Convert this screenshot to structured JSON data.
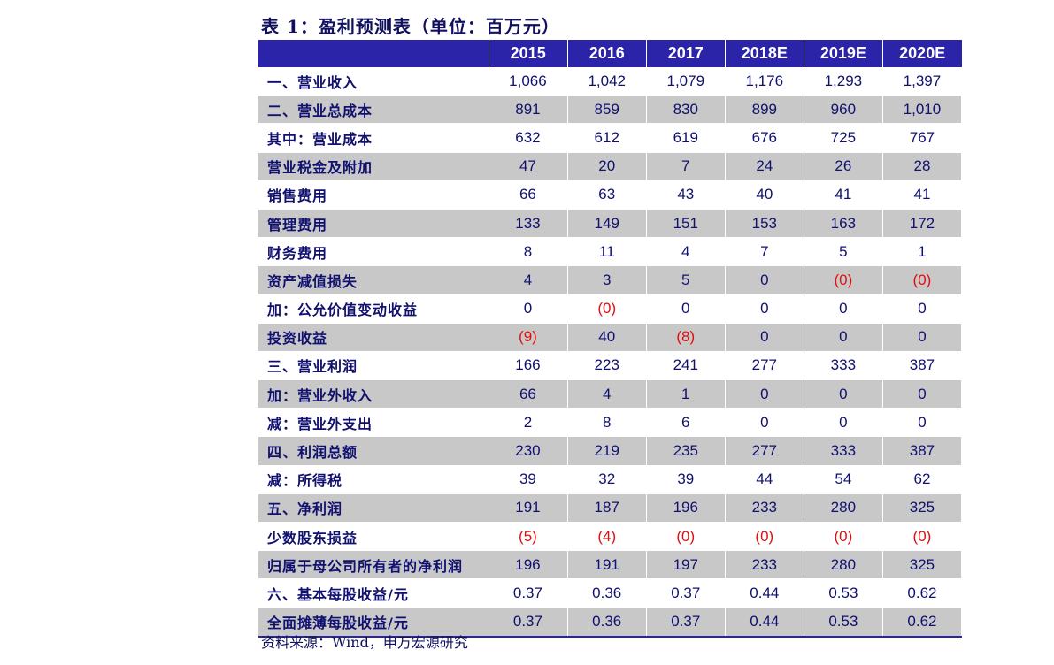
{
  "title": "表 1：盈利预测表（单位：百万元）",
  "columns": [
    "",
    "2015",
    "2016",
    "2017",
    "2018E",
    "2019E",
    "2020E"
  ],
  "rows": [
    {
      "label": "一、营业收入",
      "values": [
        "1,066",
        "1,042",
        "1,079",
        "1,176",
        "1,293",
        "1,397"
      ]
    },
    {
      "label": "二、营业总成本",
      "values": [
        "891",
        "859",
        "830",
        "899",
        "960",
        "1,010"
      ]
    },
    {
      "label": "其中：营业成本",
      "values": [
        "632",
        "612",
        "619",
        "676",
        "725",
        "767"
      ]
    },
    {
      "label": "营业税金及附加",
      "values": [
        "47",
        "20",
        "7",
        "24",
        "26",
        "28"
      ]
    },
    {
      "label": "销售费用",
      "values": [
        "66",
        "63",
        "43",
        "40",
        "41",
        "41"
      ]
    },
    {
      "label": "管理费用",
      "values": [
        "133",
        "149",
        "151",
        "153",
        "163",
        "172"
      ]
    },
    {
      "label": "财务费用",
      "values": [
        "8",
        "11",
        "4",
        "7",
        "5",
        "1"
      ]
    },
    {
      "label": "资产减值损失",
      "values": [
        "4",
        "3",
        "5",
        "0",
        "(0)",
        "(0)"
      ]
    },
    {
      "label": "加：公允价值变动收益",
      "values": [
        "0",
        "(0)",
        "0",
        "0",
        "0",
        "0"
      ]
    },
    {
      "label": "投资收益",
      "values": [
        "(9)",
        "40",
        "(8)",
        "0",
        "0",
        "0"
      ]
    },
    {
      "label": "三、营业利润",
      "values": [
        "166",
        "223",
        "241",
        "277",
        "333",
        "387"
      ]
    },
    {
      "label": "加：营业外收入",
      "values": [
        "66",
        "4",
        "1",
        "0",
        "0",
        "0"
      ]
    },
    {
      "label": "减：营业外支出",
      "values": [
        "2",
        "8",
        "6",
        "0",
        "0",
        "0"
      ]
    },
    {
      "label": "四、利润总额",
      "values": [
        "230",
        "219",
        "235",
        "277",
        "333",
        "387"
      ]
    },
    {
      "label": "减：所得税",
      "values": [
        "39",
        "32",
        "39",
        "44",
        "54",
        "62"
      ]
    },
    {
      "label": "五、净利润",
      "values": [
        "191",
        "187",
        "196",
        "233",
        "280",
        "325"
      ]
    },
    {
      "label": "少数股东损益",
      "values": [
        "(5)",
        "(4)",
        "(0)",
        "(0)",
        "(0)",
        "(0)"
      ]
    },
    {
      "label": "归属于母公司所有者的净利润",
      "values": [
        "196",
        "191",
        "197",
        "233",
        "280",
        "325"
      ]
    },
    {
      "label": "六、基本每股收益/元",
      "values": [
        "0.37",
        "0.36",
        "0.37",
        "0.44",
        "0.53",
        "0.62"
      ]
    },
    {
      "label": "全面摊薄每股收益/元",
      "values": [
        "0.37",
        "0.36",
        "0.37",
        "0.44",
        "0.53",
        "0.62"
      ]
    }
  ],
  "source": "资料来源：Wind，申万宏源研究",
  "colors": {
    "header_bg": "#2b23a8",
    "shade": "#c8c8c8",
    "negative": "#e01010",
    "text": "#101070"
  }
}
